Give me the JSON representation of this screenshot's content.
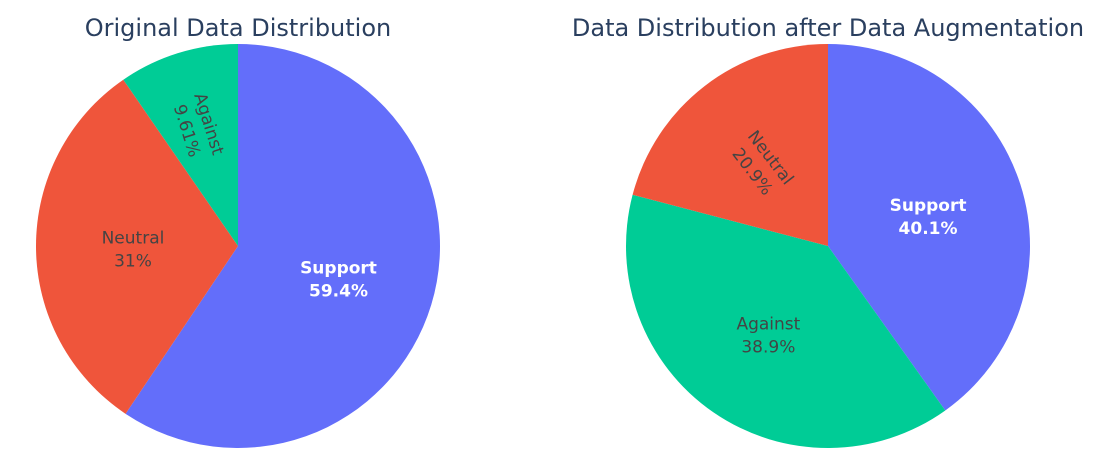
{
  "chart_data": [
    {
      "type": "pie",
      "title": "Original Data Distribution",
      "sort": "descending",
      "direction": "clockwise",
      "start": "12 o'clock",
      "slices": [
        {
          "label": "Support",
          "value": 59.4,
          "percent_text": "59.4%",
          "color": "#636efa",
          "text_color": "#ffffff",
          "text_rotated": false
        },
        {
          "label": "Neutral",
          "value": 31.0,
          "percent_text": "31%",
          "color": "#ef553b",
          "text_color": "#444444",
          "text_rotated": false
        },
        {
          "label": "Against",
          "value": 9.61,
          "percent_text": "9.61%",
          "color": "#00cc96",
          "text_color": "#444444",
          "text_rotated": true
        }
      ]
    },
    {
      "type": "pie",
      "title": "Data Distribution after Data Augmentation",
      "sort": "descending",
      "direction": "clockwise",
      "start": "12 o'clock",
      "slices": [
        {
          "label": "Support",
          "value": 40.1,
          "percent_text": "40.1%",
          "color": "#636efa",
          "text_color": "#ffffff",
          "text_rotated": false
        },
        {
          "label": "Neutral",
          "value": 20.9,
          "percent_text": "20.9%",
          "color": "#ef553b",
          "text_color": "#444444",
          "text_rotated": true
        },
        {
          "label": "Against",
          "value": 38.9,
          "percent_text": "38.9%",
          "color": "#00cc96",
          "text_color": "#444444",
          "text_rotated": false
        }
      ]
    }
  ]
}
